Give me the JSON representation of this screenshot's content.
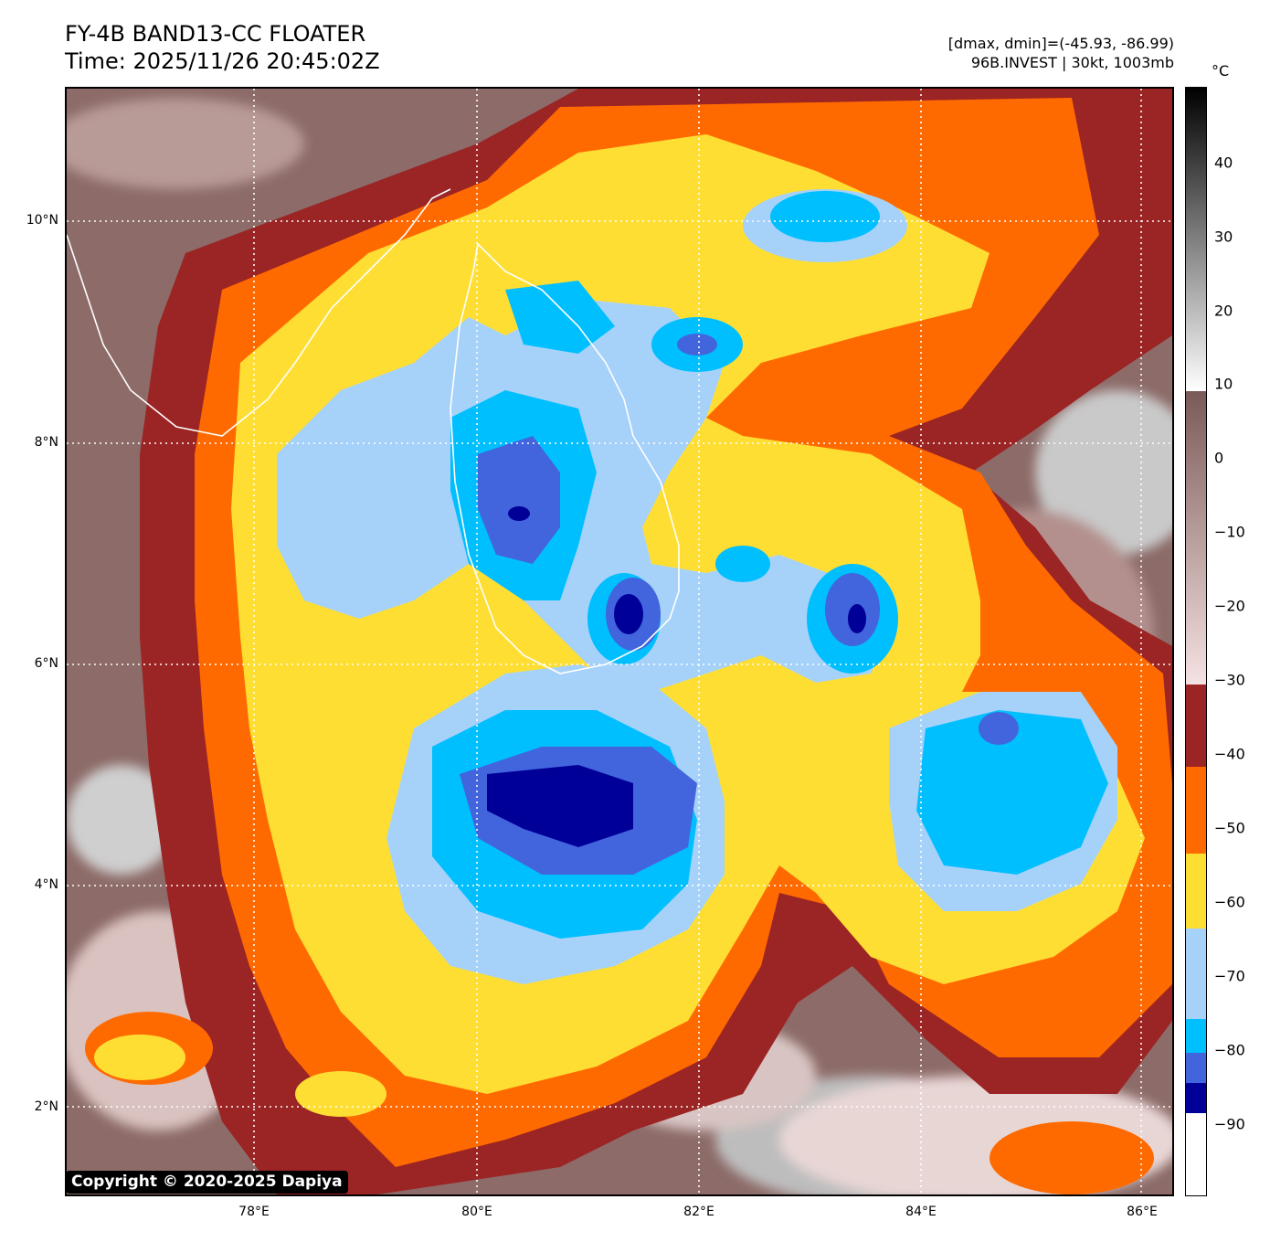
{
  "header": {
    "title_line1": "FY-4B BAND13-CC FLOATER",
    "title_line2": "Time: 2025/11/26 20:45:02Z",
    "info_line1": "[dmax, dmin]=(-45.93, -86.99)",
    "info_line2": "96B.INVEST | 30kt, 1003mb"
  },
  "map": {
    "lat_labels": [
      "10°N",
      "8°N",
      "6°N",
      "4°N",
      "2°N"
    ],
    "lon_labels": [
      "78°E",
      "80°E",
      "82°E",
      "84°E",
      "86°E"
    ],
    "copyright": "Copyright © 2020-2025 Dapiya"
  },
  "colorbar": {
    "unit": "°C",
    "ticks": [
      "40",
      "30",
      "20",
      "10",
      "0",
      "−10",
      "−20",
      "−30",
      "−40",
      "−50",
      "−60",
      "−70",
      "−80",
      "−90"
    ],
    "colors": {
      "warm_gray_top": "#000000",
      "warm_gray_bottom": "#ffffff",
      "brown_top": "#7a5a58",
      "brown_bottom": "#f0dede",
      "dark_red": "#9b2424",
      "orange": "#ff6a00",
      "yellow": "#ffde33",
      "light_blue": "#a6d2fa",
      "cyan": "#00bfff",
      "blue": "#4264dd",
      "navy": "#000099",
      "white": "#ffffff"
    }
  }
}
